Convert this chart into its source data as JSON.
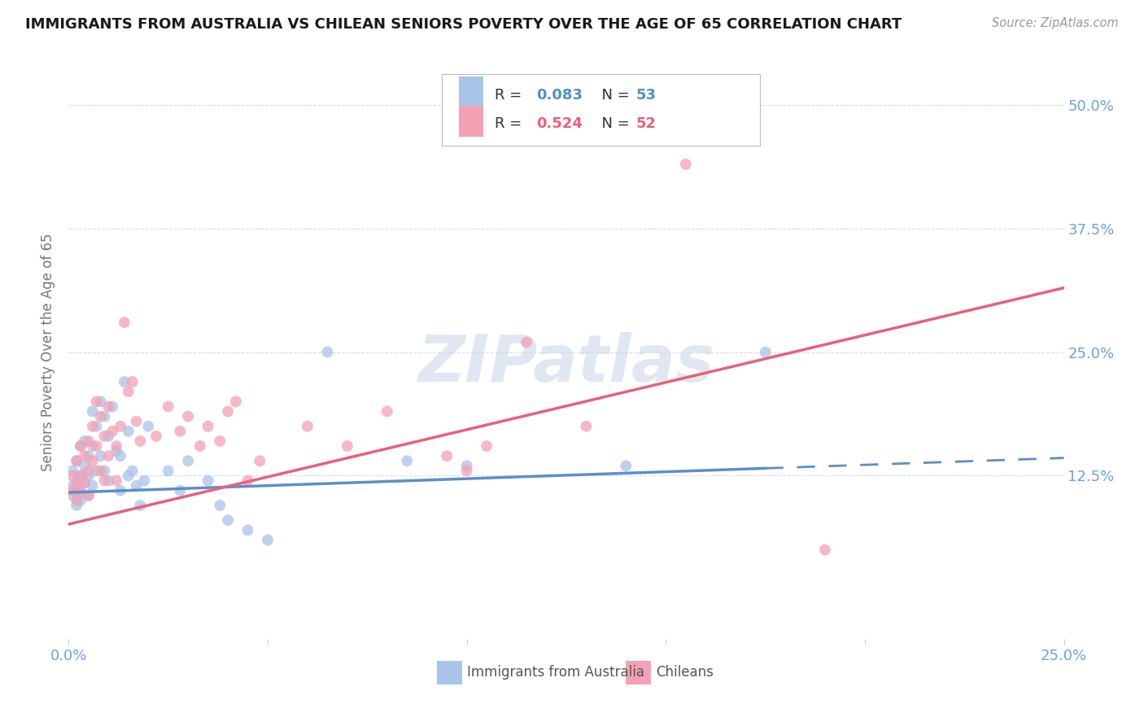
{
  "title": "IMMIGRANTS FROM AUSTRALIA VS CHILEAN SENIORS POVERTY OVER THE AGE OF 65 CORRELATION CHART",
  "source": "Source: ZipAtlas.com",
  "ylabel": "Seniors Poverty Over the Age of 65",
  "y_tick_labels": [
    "12.5%",
    "25.0%",
    "37.5%",
    "50.0%"
  ],
  "x_tick_labels": [
    "0.0%",
    "25.0%"
  ],
  "xlim": [
    0.0,
    0.25
  ],
  "ylim": [
    -0.04,
    0.54
  ],
  "y_ticks": [
    0.125,
    0.25,
    0.375,
    0.5
  ],
  "x_ticks": [
    0.0,
    0.05,
    0.1,
    0.15,
    0.2,
    0.25
  ],
  "legend_label_blue": "Immigrants from Australia",
  "legend_label_pink": "Chileans",
  "color_blue": "#a8c4e8",
  "color_pink": "#f4a0b5",
  "color_blue_line": "#5b8fc9",
  "color_pink_line": "#e8607a",
  "color_blue_text": "#4d8fd1",
  "color_pink_text": "#e8607a",
  "color_axis_labels": "#6aa3d9",
  "background_color": "#ffffff",
  "grid_color": "#d8dde8",
  "watermark_color": "#c8d5e8",
  "blue_line_x0": 0.0,
  "blue_line_x1": 0.25,
  "blue_line_y0": 0.108,
  "blue_line_y1": 0.143,
  "blue_line_solid_end": 0.175,
  "pink_line_x0": 0.0,
  "pink_line_x1": 0.25,
  "pink_line_y0": 0.076,
  "pink_line_y1": 0.315
}
